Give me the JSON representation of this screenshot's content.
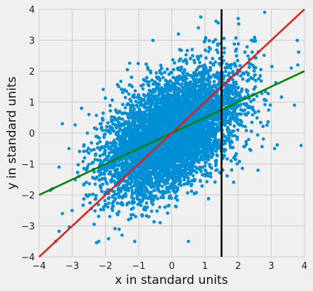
{
  "chart_data": {
    "type": "scatter",
    "title": "",
    "xlabel": "x in standard units",
    "ylabel": "y in standard units",
    "xlim": [
      -4,
      4
    ],
    "ylim": [
      -4,
      4
    ],
    "xticks": [
      -4,
      -3,
      -2,
      -1,
      0,
      1,
      2,
      3,
      4
    ],
    "yticks": [
      -4,
      -3,
      -2,
      -1,
      0,
      1,
      2,
      3,
      4
    ],
    "xtick_labels": [
      "−4",
      "−3",
      "−2",
      "−1",
      "0",
      "1",
      "2",
      "3",
      "4"
    ],
    "ytick_labels": [
      "−4",
      "−3",
      "−2",
      "−1",
      "0",
      "1",
      "2",
      "3",
      "4"
    ],
    "grid": true,
    "correlation_approx": 0.5,
    "point_count_approx": 10000,
    "sample_points": [
      {
        "x": 2.8,
        "y": 3.9
      },
      {
        "x": 3.1,
        "y": -0.5
      },
      {
        "x": 3.7,
        "y": 0.9
      },
      {
        "x": 3.8,
        "y": 2.2
      },
      {
        "x": 3.6,
        "y": 2.1
      },
      {
        "x": 3.9,
        "y": -0.4
      },
      {
        "x": -3.5,
        "y": -3.5
      },
      {
        "x": -3.3,
        "y": -2.6
      },
      {
        "x": -3.6,
        "y": -1.8
      },
      {
        "x": -3.4,
        "y": -1.1
      },
      {
        "x": -3.3,
        "y": 0.3
      },
      {
        "x": -3.1,
        "y": -0.5
      },
      {
        "x": -2.5,
        "y": 0.6
      },
      {
        "x": -2.2,
        "y": -3.5
      },
      {
        "x": -1.6,
        "y": 1.5
      },
      {
        "x": -1.5,
        "y": -3.3
      },
      {
        "x": 0.2,
        "y": 3.2
      },
      {
        "x": 0.8,
        "y": 3.4
      },
      {
        "x": 0.5,
        "y": -3.5
      },
      {
        "x": 2.0,
        "y": 3.7
      },
      {
        "x": 2.4,
        "y": 3.0
      },
      {
        "x": 2.6,
        "y": -1.2
      }
    ],
    "lines": [
      {
        "name": "regression",
        "color": "#008000",
        "slope": 0.5,
        "intercept": 0
      },
      {
        "name": "identity",
        "color": "#e41a1c",
        "slope": 1,
        "intercept": 0
      },
      {
        "name": "vertical",
        "color": "#000000",
        "x": 1.5
      }
    ],
    "point_color": "#008fd5"
  }
}
